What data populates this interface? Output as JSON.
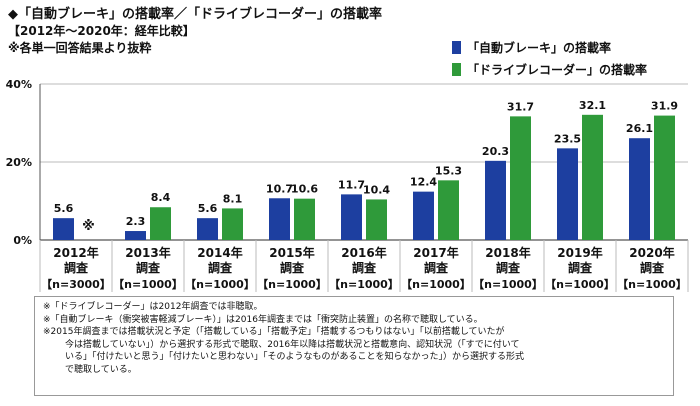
{
  "header": {
    "title": "◆「自動ブレーキ」の搭載率／「ドライブレコーダー」の搭載率",
    "subtitle": "【2012年～2020年：経年比較】",
    "subnote": "※各単一回答結果より抜粋"
  },
  "colors": {
    "blue": "#1d3fa0",
    "green": "#2f9a3a",
    "grid": "#bbbbbb",
    "axis": "#555555"
  },
  "chart_data": {
    "type": "bar",
    "categories": [
      "2012年",
      "2013年",
      "2014年",
      "2015年",
      "2016年",
      "2017年",
      "2018年",
      "2019年",
      "2020年"
    ],
    "category_line2": [
      "調査",
      "調査",
      "調査",
      "調査",
      "調査",
      "調査",
      "調査",
      "調査",
      "調査"
    ],
    "sample_sizes": [
      "【n=3000】",
      "【n=1000】",
      "【n=1000】",
      "【n=1000】",
      "【n=1000】",
      "【n=1000】",
      "【n=1000】",
      "【n=1000】",
      "【n=1000】"
    ],
    "series": [
      {
        "name": "「自動ブレーキ」の搭載率",
        "color": "#1d3fa0",
        "values": [
          5.6,
          2.3,
          5.6,
          10.7,
          11.7,
          12.4,
          20.3,
          23.5,
          26.1
        ]
      },
      {
        "name": "「ドライブレコーダー」の搭載率",
        "color": "#2f9a3a",
        "values": [
          null,
          8.4,
          8.1,
          10.6,
          10.4,
          15.3,
          31.7,
          32.1,
          31.9
        ]
      }
    ],
    "missing_label": "※",
    "yticks": [
      "0%",
      "20%",
      "40%"
    ],
    "ylim": [
      0,
      40
    ],
    "grid": true,
    "legend": "top-right"
  },
  "notes": [
    "※「ドライブレコーダー」は2012年調査では非聴取。",
    "※「自動ブレーキ（衝突被害軽減ブレーキ）」は2016年調査までは「衝突防止装置」の名称で聴取している。",
    "※2015年調査までは搭載状況と予定（「搭載している」「搭載予定」「搭載するつもりはない」「以前搭載していたが",
    "今は搭載していない」）から選択する形式で聴取、2016年以降は搭載状況と搭載意向、認知状況（「すでに付いて",
    "いる」「付けたいと思う」「付けたいと思わない」「そのようなものがあることを知らなかった」）から選択する形式",
    "で聴取している。"
  ]
}
